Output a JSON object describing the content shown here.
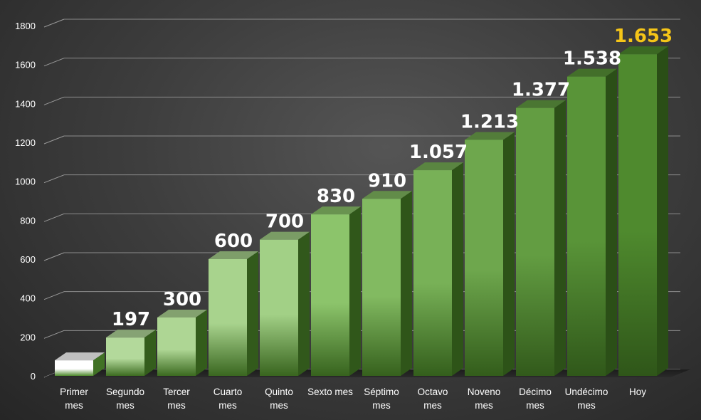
{
  "chart_data": {
    "type": "bar",
    "title": "",
    "xlabel": "",
    "ylabel": "",
    "ylim": [
      0,
      1800
    ],
    "yticks": [
      "0",
      "200",
      "400",
      "600",
      "800",
      "1000",
      "1200",
      "1400",
      "1600",
      "1800"
    ],
    "grid": true,
    "categories": [
      [
        "Primer",
        "mes"
      ],
      [
        "Segundo",
        "mes"
      ],
      [
        "Tercer",
        "mes"
      ],
      [
        "Cuarto",
        "mes"
      ],
      [
        "Quinto",
        "mes"
      ],
      [
        "Sexto mes"
      ],
      [
        "Séptimo",
        "mes"
      ],
      [
        "Octavo",
        "mes"
      ],
      [
        "Noveno",
        "mes"
      ],
      [
        "Décimo",
        "mes"
      ],
      [
        "Undécimo",
        "mes"
      ],
      [
        "Hoy"
      ]
    ],
    "values": [
      80,
      197,
      300,
      600,
      700,
      830,
      910,
      1057,
      1213,
      1377,
      1538,
      1653
    ],
    "data_labels": [
      "",
      "197",
      "300",
      "600",
      "700",
      "830",
      "910",
      "1.057",
      "1.213",
      "1.377",
      "1.538",
      "1.653"
    ],
    "colors": {
      "bar_light_top": "#ffffff",
      "bar_mid": "#8cc46b",
      "bar_dark": "#4f8a2e",
      "label_default": "#ffffff",
      "label_highlight": "#f5c518"
    },
    "highlight_index": 11
  }
}
